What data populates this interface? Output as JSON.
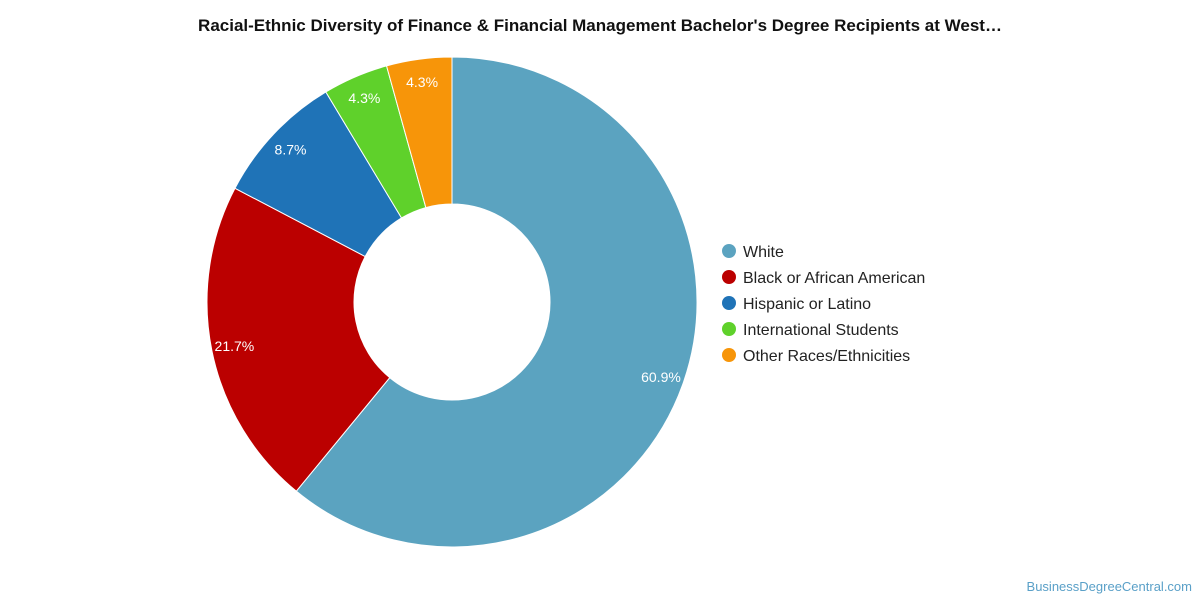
{
  "chart_data": {
    "type": "pie",
    "title": "Racial-Ethnic Diversity of Finance & Financial Management Bachelor's Degree Recipients at West…",
    "donut": true,
    "categories": [
      "White",
      "Black or African American",
      "Hispanic or Latino",
      "International Students",
      "Other Races/Ethnicities"
    ],
    "values": [
      60.9,
      21.7,
      8.7,
      4.3,
      4.3
    ],
    "value_labels": [
      "60.9%",
      "21.7%",
      "8.7%",
      "4.3%",
      "4.3%"
    ],
    "colors": [
      "#5ba3c0",
      "#bb0000",
      "#1f73b7",
      "#5fd12b",
      "#f79509"
    ],
    "legend_position": "right"
  },
  "source": "BusinessDegreeCentral.com"
}
